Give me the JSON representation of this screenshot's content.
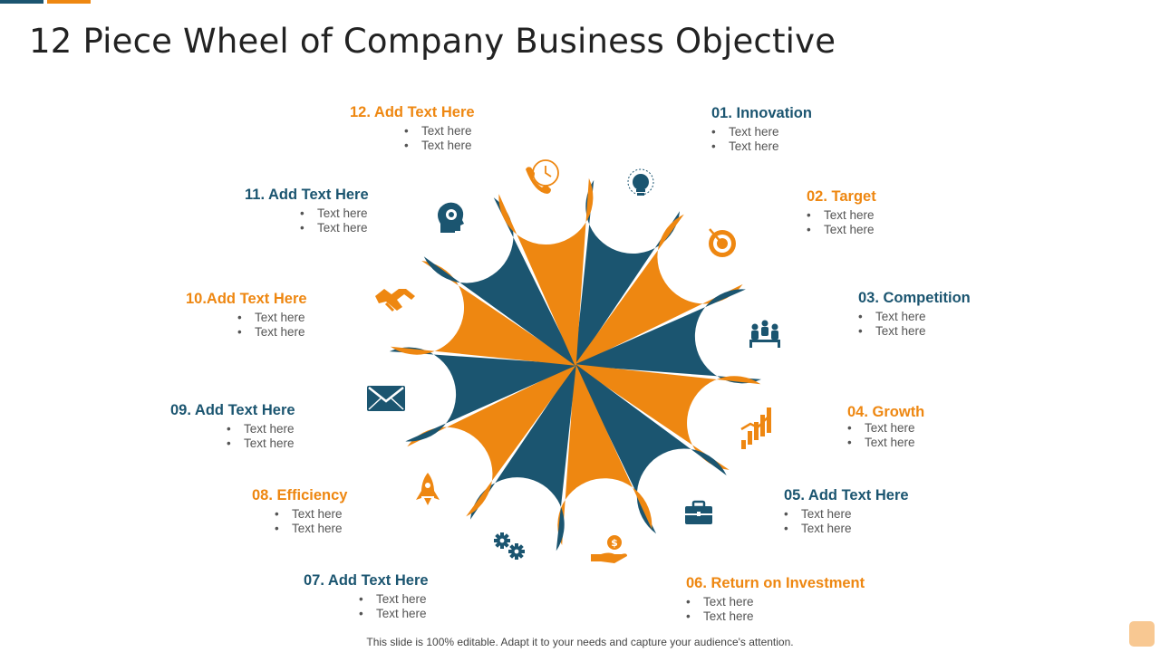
{
  "title": "12 Piece Wheel of Company Business Objective",
  "colors": {
    "orange": "#EE8711",
    "blue": "#1B5570"
  },
  "segments": [
    {
      "heading": "01. Innovation",
      "color": "blue",
      "icon": "lightbulb-icon",
      "bullets": [
        "Text here",
        "Text here"
      ]
    },
    {
      "heading": "02. Target",
      "color": "orange",
      "icon": "target-icon",
      "bullets": [
        "Text here",
        "Text here"
      ]
    },
    {
      "heading": "03. Competition",
      "color": "blue",
      "icon": "team-competition-icon",
      "bullets": [
        "Text here",
        "Text here"
      ]
    },
    {
      "heading": "04. Growth",
      "color": "orange",
      "icon": "growth-chart-icon",
      "bullets": [
        "Text here",
        "Text here"
      ]
    },
    {
      "heading": "05. Add Text Here",
      "color": "blue",
      "icon": "briefcase-icon",
      "bullets": [
        "Text here",
        "Text here"
      ]
    },
    {
      "heading": "06. Return on Investment",
      "color": "orange",
      "icon": "money-hand-icon",
      "bullets": [
        "Text here",
        "Text here"
      ]
    },
    {
      "heading": "07. Add Text Here",
      "color": "blue",
      "icon": "gears-icon",
      "bullets": [
        "Text here",
        "Text here"
      ]
    },
    {
      "heading": "08. Efficiency",
      "color": "orange",
      "icon": "rocket-icon",
      "bullets": [
        "Text here",
        "Text here"
      ]
    },
    {
      "heading": "09. Add Text Here",
      "color": "blue",
      "icon": "envelope-icon",
      "bullets": [
        "Text here",
        "Text here"
      ]
    },
    {
      "heading": "10.Add Text Here",
      "color": "orange",
      "icon": "handshake-icon",
      "bullets": [
        "Text here",
        "Text here"
      ]
    },
    {
      "heading": "11. Add Text Here",
      "color": "blue",
      "icon": "head-gear-icon",
      "bullets": [
        "Text here",
        "Text here"
      ]
    },
    {
      "heading": "12. Add Text Here",
      "color": "orange",
      "icon": "phone-clock-icon",
      "bullets": [
        "Text here",
        "Text here"
      ]
    }
  ],
  "footer": "This slide is 100% editable. Adapt it to your needs and capture your audience's attention."
}
